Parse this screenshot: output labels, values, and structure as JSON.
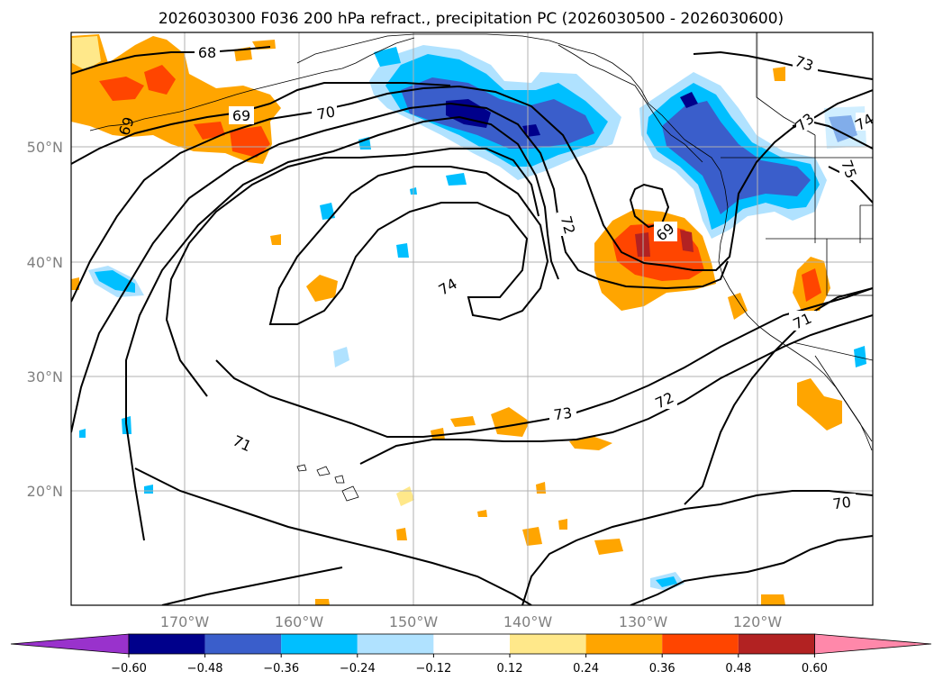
{
  "title": "2026030300 F036 200 hPa refract., precipitation PC (2026030500 - 2026030600)",
  "lat_labels": [
    "50°N",
    "40°N",
    "30°N",
    "20°N"
  ],
  "lon_labels": [
    "170°W",
    "160°W",
    "150°W",
    "140°W",
    "130°W",
    "120°W"
  ],
  "colorbar": {
    "ticks": [
      "−0.60",
      "−0.48",
      "−0.36",
      "−0.24",
      "−0.12",
      "0.12",
      "0.24",
      "0.36",
      "0.48",
      "0.60"
    ],
    "colors": [
      "#9932cc",
      "#00008b",
      "#3a5ecb",
      "#00bfff",
      "#b0e2ff",
      "#ffffff",
      "#ffe88a",
      "#ffa500",
      "#ff4500",
      "#b22222",
      "#ff88aa"
    ]
  },
  "contour_labels": {
    "c68": "68",
    "c69a": "69",
    "c69b": "69",
    "c69c": "69",
    "c70a": "70",
    "c70b": "70",
    "c71a": "71",
    "c71b": "71",
    "c72a": "72",
    "c72b": "72",
    "c73a": "73",
    "c73b": "73",
    "c73c": "73",
    "c74": "74",
    "c75": "75",
    "c74b": "74"
  },
  "fill_colors": {
    "orange": "#ffa500",
    "red": "#ff4500",
    "darkred": "#b22222",
    "yellow": "#ffe88a",
    "lightblue": "#b0e2ff",
    "blue": "#00bfff",
    "royal": "#3a5ecb",
    "navy": "#00008b"
  }
}
